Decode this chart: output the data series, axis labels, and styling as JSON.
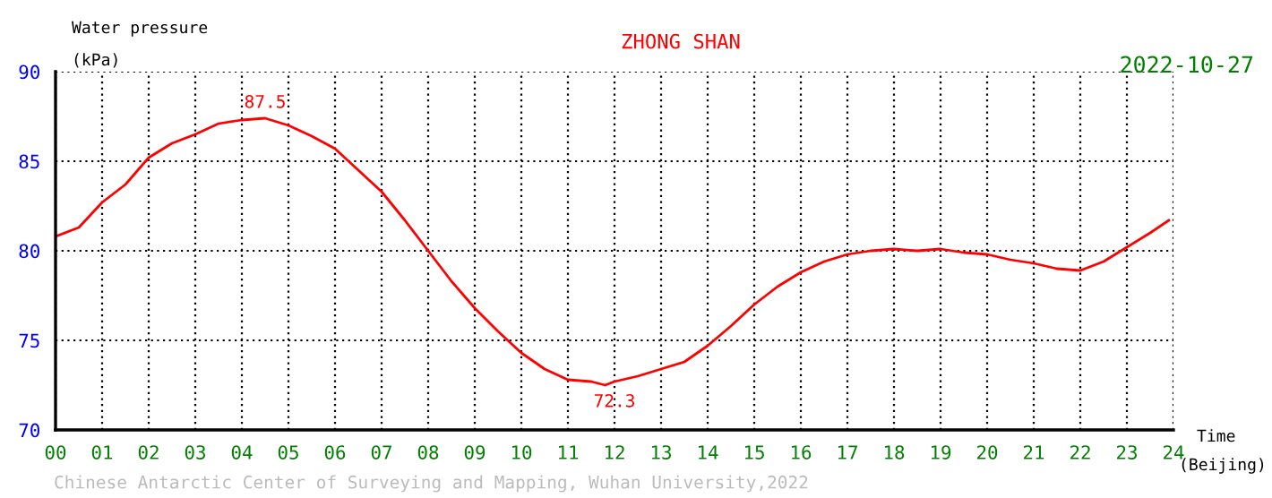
{
  "chart_data": {
    "type": "line",
    "title": "ZHONG SHAN",
    "subtitle": "2022-10-27",
    "xlabel": "Time\n(Beijing)",
    "ylabel": "Water pressure\n(kPa)",
    "x": [
      0,
      0.5,
      1,
      1.5,
      2,
      2.5,
      3,
      3.5,
      4,
      4.5,
      5,
      5.5,
      6,
      6.5,
      7,
      7.5,
      8,
      8.5,
      9,
      9.5,
      10,
      10.5,
      11,
      11.5,
      11.8,
      12,
      12.5,
      13,
      13.5,
      14,
      14.5,
      15,
      15.5,
      16,
      16.5,
      17,
      17.5,
      18,
      18.5,
      19,
      19.5,
      20,
      20.5,
      21,
      21.5,
      22,
      22.5,
      23,
      23.5,
      23.9
    ],
    "series": [
      {
        "color": "#ff0000",
        "values": [
          80.8,
          81.3,
          82.7,
          83.7,
          85.2,
          86.0,
          86.5,
          87.1,
          87.3,
          87.4,
          87.0,
          86.4,
          85.7,
          84.5,
          83.3,
          81.7,
          80.0,
          78.3,
          76.8,
          75.5,
          74.3,
          73.4,
          72.8,
          72.7,
          72.5,
          72.7,
          73.0,
          73.4,
          73.8,
          74.7,
          75.8,
          77.0,
          78.0,
          78.8,
          79.4,
          79.8,
          80.0,
          80.1,
          80.0,
          80.1,
          79.9,
          79.8,
          79.5,
          79.3,
          79.0,
          78.9,
          79.4,
          80.2,
          81.0,
          81.7
        ]
      }
    ],
    "annotations": [
      {
        "text": "87.5",
        "x": 4.5,
        "y": 87.5
      },
      {
        "text": "72.3",
        "x": 12,
        "y": 72.3
      },
      "Chinese Antarctic Center of Surveying and Mapping, Wuhan University,2022"
    ],
    "xlim": [
      0,
      24
    ],
    "ylim": [
      70,
      90
    ],
    "xticks": [
      {
        "value": 0,
        "label": "00"
      },
      {
        "value": 1,
        "label": "01"
      },
      {
        "value": 2,
        "label": "02"
      },
      {
        "value": 3,
        "label": "03"
      },
      {
        "value": 4,
        "label": "04"
      },
      {
        "value": 5,
        "label": "05"
      },
      {
        "value": 6,
        "label": "06"
      },
      {
        "value": 7,
        "label": "07"
      },
      {
        "value": 8,
        "label": "08"
      },
      {
        "value": 9,
        "label": "09"
      },
      10,
      11,
      12,
      13,
      14,
      15,
      16,
      17,
      18,
      19,
      20,
      21,
      22,
      23,
      24
    ],
    "yticks": [
      70,
      75,
      80,
      85,
      90
    ],
    "grid": true,
    "line_style": "solid",
    "marker": "none"
  }
}
